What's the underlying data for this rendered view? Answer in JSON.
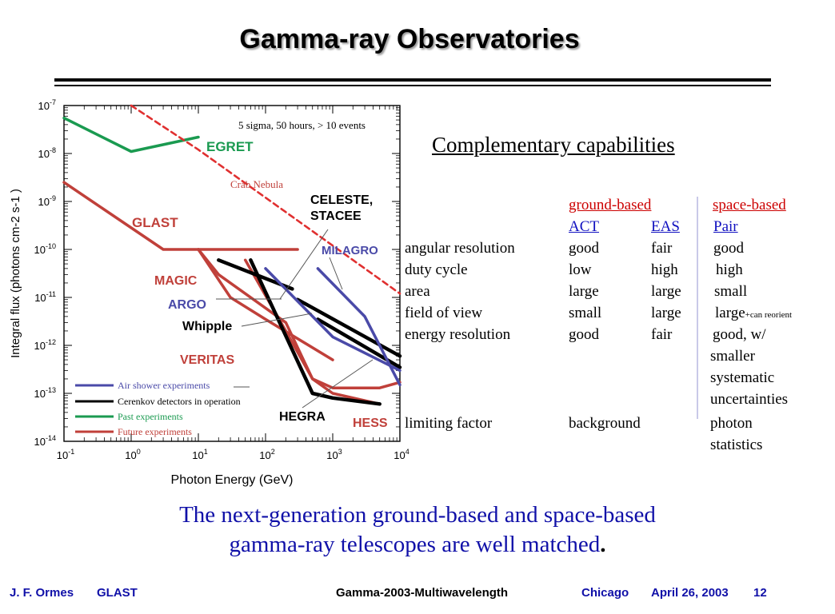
{
  "slide": {
    "title": "Gamma-ray Observatories",
    "subhead": "Complementary capabilities",
    "caption_line1": "The next-generation ground-based and space-based",
    "caption_line2": "gamma-ray telescopes are well matched",
    "caption_period": "."
  },
  "comparison_table": {
    "group_headers": {
      "ground": "ground-based",
      "space": "space-based"
    },
    "column_headers": {
      "act": "ACT",
      "eas": "EAS",
      "pair": "Pair"
    },
    "rows": [
      {
        "label": "angular resolution",
        "act": "good",
        "eas": "fair",
        "pair": "good"
      },
      {
        "label": "duty cycle",
        "act": "low",
        "eas": "high",
        "pair": "high"
      },
      {
        "label": "area",
        "act": "large",
        "eas": "large",
        "pair": "small"
      },
      {
        "label": "field of view",
        "act": "small",
        "eas": "large",
        "pair": "large",
        "pair_note": "+can reorient"
      },
      {
        "label": "energy resolution",
        "act": "good",
        "eas": "fair",
        "pair_lines": [
          "good, w/",
          "smaller",
          "systematic",
          "uncertainties"
        ]
      }
    ],
    "limiting_factor": {
      "label": "limiting factor",
      "ground": "background",
      "space_lines": [
        "photon",
        "statistics"
      ]
    }
  },
  "footer": {
    "author": "J. F. Ormes",
    "project": "GLAST",
    "conference": "Gamma-2003-Multiwavelength",
    "city": "Chicago",
    "date": "April 26, 2003",
    "page": "12"
  },
  "chart_data": {
    "type": "line",
    "xlabel": "Photon Energy (GeV)",
    "ylabel": "Integral flux (photons cm-2 s-1 )",
    "x_scale": "log",
    "y_scale": "log",
    "xlim": [
      0.1,
      10000
    ],
    "ylim": [
      1e-14,
      1e-07
    ],
    "x_ticks": [
      "10-1",
      "100",
      "101",
      "102",
      "103",
      "104"
    ],
    "y_ticks": [
      "10-7",
      "10-8",
      "10-9",
      "10-10",
      "10-11",
      "10-12",
      "10-13",
      "10-14"
    ],
    "annotation": "5 sigma, 50 hours,  > 10 events",
    "colors": {
      "air_shower": "#4a4aa8",
      "cerenkov": "#000000",
      "past": "#1a9a50",
      "future": "#c0403a",
      "crab": "#e03030"
    },
    "legend": {
      "placement": "bottom-left",
      "entries": [
        {
          "label": "Air shower experiments",
          "color": "#4a4aa8"
        },
        {
          "label": "Cerenkov detectors in operation",
          "color": "#000000"
        },
        {
          "label": "Past experiments",
          "color": "#1a9a50"
        },
        {
          "label": "Future experiments",
          "color": "#c0403a"
        }
      ]
    },
    "series": [
      {
        "name": "EGRET",
        "category": "past",
        "points": [
          [
            0.1,
            5.5e-08
          ],
          [
            1,
            1.1e-08
          ],
          [
            10,
            2.2e-08
          ]
        ]
      },
      {
        "name": "GLAST",
        "category": "future",
        "points": [
          [
            0.1,
            2.5e-09
          ],
          [
            3,
            1e-10
          ],
          [
            300,
            1e-10
          ]
        ]
      },
      {
        "name": "Crab Nebula",
        "category": "crab",
        "style": "dashed",
        "points": [
          [
            1,
            1e-07
          ],
          [
            10,
            1.2e-08
          ],
          [
            100,
            1.2e-09
          ],
          [
            1000,
            1.2e-10
          ],
          [
            10000,
            1.2e-11
          ]
        ]
      },
      {
        "name": "MAGIC",
        "category": "future",
        "points": [
          [
            10,
            1e-10
          ],
          [
            20,
            3e-11
          ],
          [
            200,
            3e-12
          ],
          [
            500,
            2e-13
          ],
          [
            1000,
            1.3e-13
          ],
          [
            5000,
            1.3e-13
          ],
          [
            10000,
            1.7e-13
          ]
        ]
      },
      {
        "name": "VERITAS",
        "category": "future",
        "points": [
          [
            10,
            1e-10
          ],
          [
            30,
            1e-11
          ],
          [
            100,
            3.5e-12
          ],
          [
            1000,
            5e-13
          ]
        ]
      },
      {
        "name": "HESS",
        "category": "future",
        "points": [
          [
            50,
            6e-11
          ],
          [
            200,
            2e-12
          ],
          [
            500,
            2e-13
          ],
          [
            1000,
            1e-13
          ],
          [
            5000,
            6e-14
          ]
        ]
      },
      {
        "name": "HEGRA",
        "category": "cerenkov",
        "points": [
          [
            60,
            6e-11
          ],
          [
            500,
            1e-13
          ],
          [
            1000,
            8e-14
          ],
          [
            5000,
            6e-14
          ]
        ]
      },
      {
        "name": "CELESTE, STACEE",
        "category": "cerenkov",
        "points": [
          [
            20,
            6e-11
          ],
          [
            250,
            1.5e-11
          ]
        ]
      },
      {
        "name": "Whipple",
        "category": "cerenkov",
        "points": [
          [
            300,
            9e-12
          ],
          [
            10000,
            6e-13
          ]
        ]
      },
      {
        "name": "Whipple (low)",
        "category": "cerenkov",
        "points": [
          [
            600,
            3.5e-12
          ],
          [
            10000,
            3.5e-13
          ]
        ]
      },
      {
        "name": "MILAGRO",
        "category": "air_shower",
        "points": [
          [
            600,
            4e-11
          ],
          [
            3000,
            4e-12
          ],
          [
            10000,
            1.5e-13
          ]
        ]
      },
      {
        "name": "ARGO",
        "category": "air_shower",
        "points": [
          [
            100,
            4e-11
          ],
          [
            1000,
            1.5e-12
          ],
          [
            10000,
            3e-13
          ]
        ]
      }
    ],
    "curve_labels": [
      "EGRET",
      "GLAST",
      "Crab  Nebula",
      "CELESTE,",
      "STACEE",
      "MILAGRO",
      "MAGIC",
      "ARGO",
      "Whipple",
      "VERITAS",
      "HEGRA",
      "HESS"
    ]
  }
}
